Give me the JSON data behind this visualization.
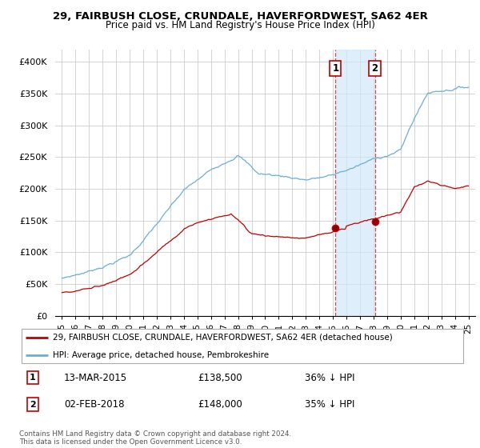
{
  "title": "29, FAIRBUSH CLOSE, CRUNDALE, HAVERFORDWEST, SA62 4ER",
  "subtitle": "Price paid vs. HM Land Registry's House Price Index (HPI)",
  "ylim": [
    0,
    420000
  ],
  "yticks": [
    0,
    50000,
    100000,
    150000,
    200000,
    250000,
    300000,
    350000,
    400000
  ],
  "ytick_labels": [
    "£0",
    "£50K",
    "£100K",
    "£150K",
    "£200K",
    "£250K",
    "£300K",
    "£350K",
    "£400K"
  ],
  "xlim": [
    1994.5,
    2025.5
  ],
  "hpi_color": "#6aaed6",
  "price_color": "#c00000",
  "shade_color": "#d0e8f8",
  "transaction1_x": 2015.19,
  "transaction1_y": 138500,
  "transaction2_x": 2018.09,
  "transaction2_y": 148000,
  "annotation1_date": "13-MAR-2015",
  "annotation1_price": "£138,500",
  "annotation1_hpi": "36% ↓ HPI",
  "annotation2_date": "02-FEB-2018",
  "annotation2_price": "£148,000",
  "annotation2_hpi": "35% ↓ HPI",
  "legend_label1": "29, FAIRBUSH CLOSE, CRUNDALE, HAVERFORDWEST, SA62 4ER (detached house)",
  "legend_label2": "HPI: Average price, detached house, Pembrokeshire",
  "footer": "Contains HM Land Registry data © Crown copyright and database right 2024.\nThis data is licensed under the Open Government Licence v3.0.",
  "background_color": "#ffffff",
  "grid_color": "#cccccc"
}
